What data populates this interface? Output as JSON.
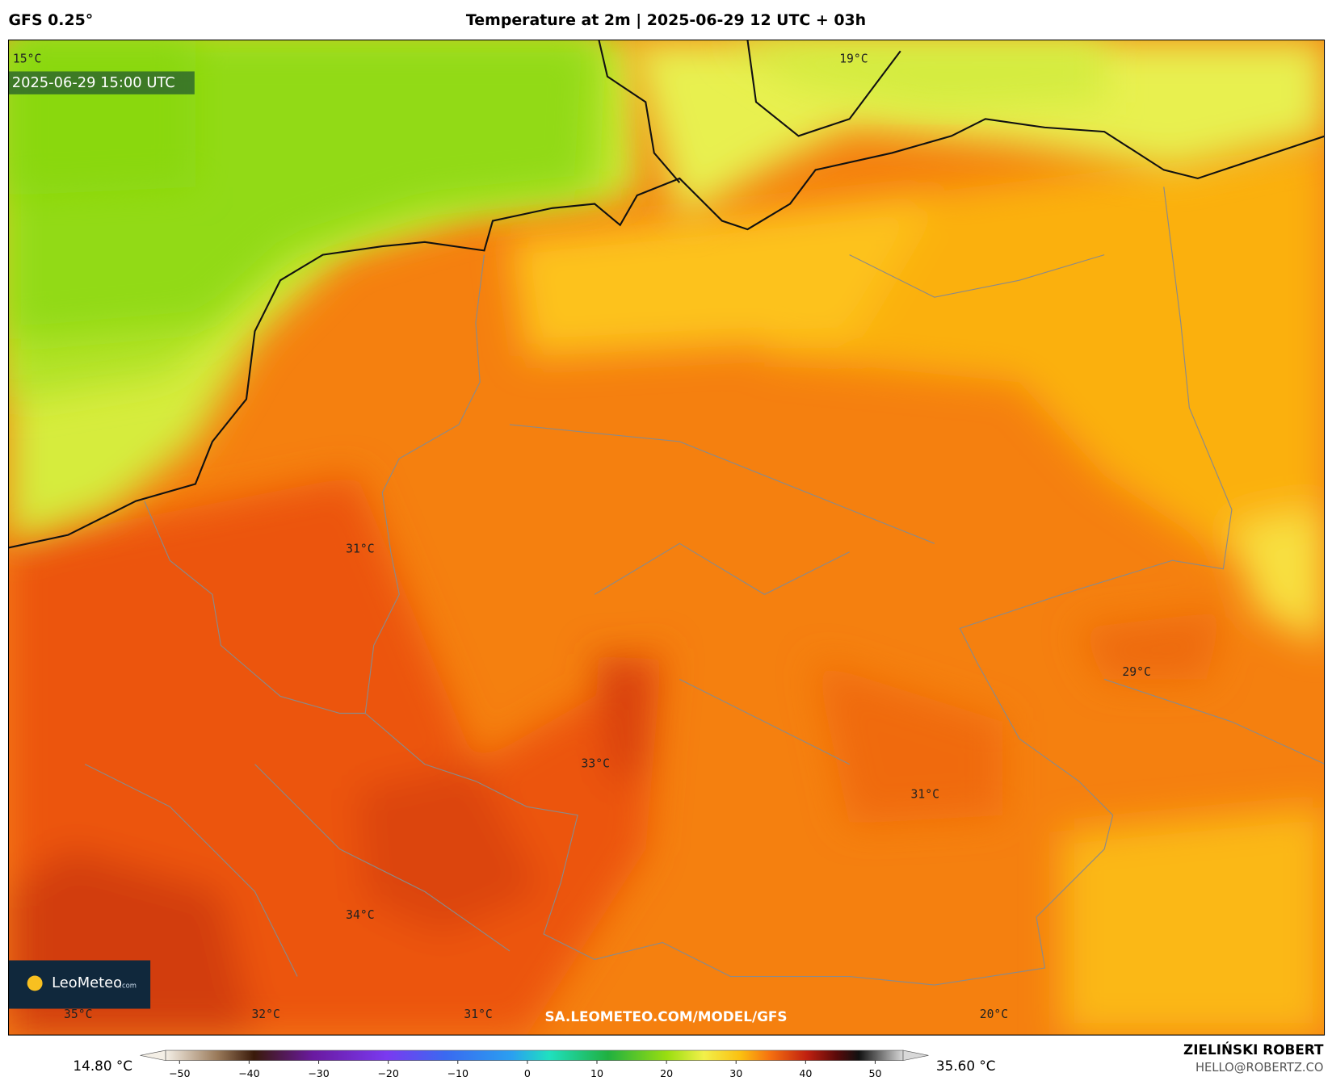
{
  "header": {
    "model": "GFS 0.25°",
    "title": "Temperature at 2m | 2025-06-29 12 UTC + 03h"
  },
  "map": {
    "valid_time": "2025-06-29 15:00 UTC",
    "labels": [
      "15°C",
      "19°C",
      "31°C",
      "29°C",
      "33°C",
      "31°C",
      "34°C",
      "35°C",
      "32°C",
      "31°C",
      "20°C"
    ],
    "logo": {
      "brand": "LeoMeteo",
      "suffix": ".com"
    },
    "watermark": "SA.LEOMETEO.COM/MODEL/GFS"
  },
  "colorbar": {
    "min_label": "14.80 °C",
    "max_label": "35.60 °C",
    "xlim": [
      -52,
      54
    ],
    "ticks": [
      {
        "value": -50,
        "label": "−50"
      },
      {
        "value": -40,
        "label": "−40"
      },
      {
        "value": -30,
        "label": "−30"
      },
      {
        "value": -20,
        "label": "−20"
      },
      {
        "value": -10,
        "label": "−10"
      },
      0,
      10,
      20,
      30,
      40,
      50
    ]
  },
  "credit": {
    "name": "ZIELIŃSKI ROBERT",
    "email": "HELLO@ROBERTZ.CO"
  }
}
